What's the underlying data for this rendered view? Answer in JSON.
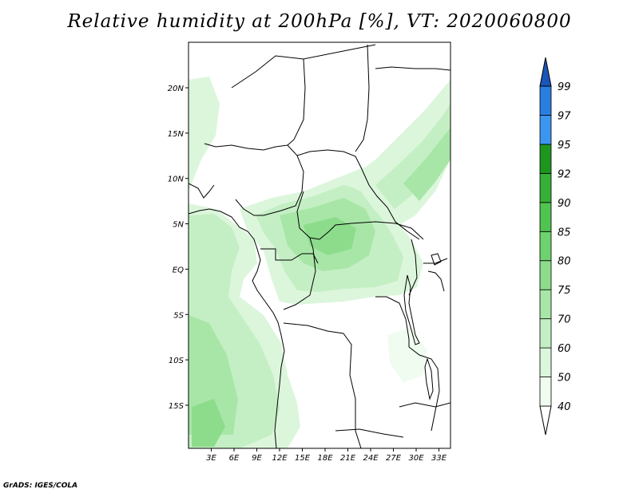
{
  "title": "Relative humidity at 200hPa [%], VT: 2020060800",
  "credit": "GrADS: IGES/COLA",
  "map": {
    "lon_labels": [
      "3E",
      "6E",
      "9E",
      "12E",
      "15E",
      "18E",
      "21E",
      "24E",
      "27E",
      "30E",
      "33E"
    ],
    "lat_labels": [
      "20N",
      "15N",
      "10N",
      "5N",
      "EQ",
      "5S",
      "10S",
      "15S"
    ]
  },
  "colorbar": {
    "levels": [
      "40",
      "50",
      "60",
      "70",
      "75",
      "80",
      "85",
      "90",
      "92",
      "95",
      "97",
      "99"
    ],
    "colors": [
      "#f0fcf0",
      "#dcf6dc",
      "#c4efc4",
      "#a8e6a8",
      "#8cdc8c",
      "#6ed26e",
      "#50c450",
      "#36b036",
      "#1e961e",
      "#3c96f0",
      "#2a7ee0",
      "#1a64c8"
    ],
    "under_color": "#ffffff",
    "over_color": "#1a56b8"
  }
}
